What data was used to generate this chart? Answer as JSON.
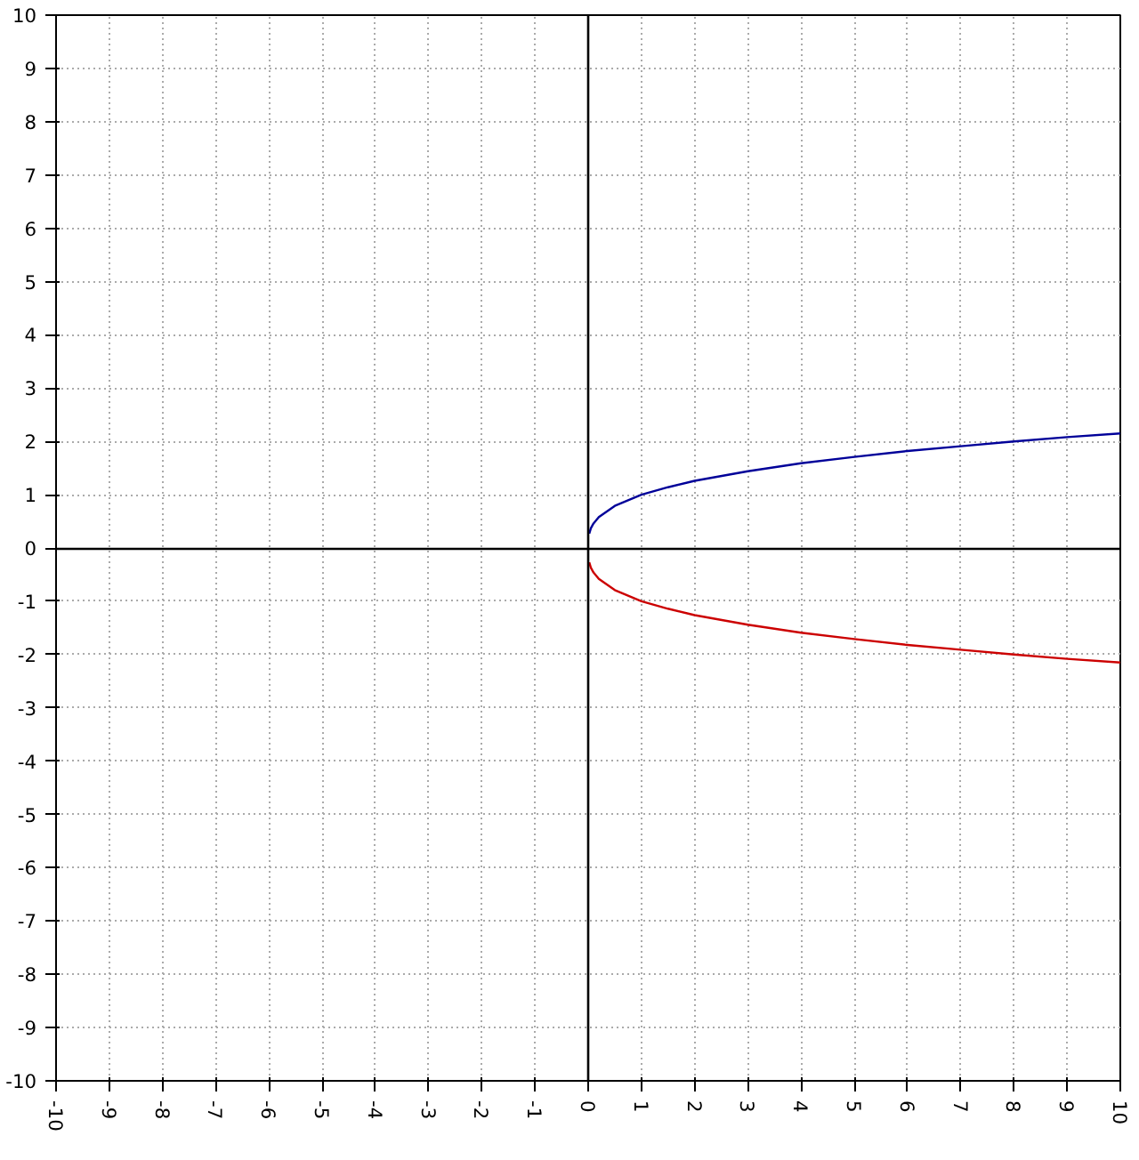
{
  "chart_data": {
    "type": "line",
    "x": [
      0.02,
      0.05,
      0.1,
      0.2,
      0.5,
      1,
      1.5,
      2,
      3,
      4,
      5,
      6,
      7,
      8,
      9,
      10
    ],
    "series": [
      {
        "color": "#000099",
        "values": [
          0.27,
          0.37,
          0.46,
          0.58,
          0.79,
          1,
          1.14,
          1.26,
          1.44,
          1.59,
          1.71,
          1.82,
          1.91,
          2,
          2.08,
          2.15
        ]
      },
      {
        "color": "#cc0000",
        "values": [
          -0.27,
          -0.37,
          -0.46,
          -0.58,
          -0.79,
          -1,
          -1.14,
          -1.26,
          -1.44,
          -1.59,
          -1.71,
          -1.82,
          -1.91,
          -2,
          -2.08,
          -2.15
        ]
      }
    ],
    "xlim": [
      -10,
      10
    ],
    "ylim": [
      -10,
      10
    ],
    "xticks": [
      -10,
      -9,
      -8,
      -7,
      -6,
      -5,
      -4,
      -3,
      -2,
      -1,
      0,
      1,
      2,
      3,
      4,
      5,
      6,
      7,
      8,
      9,
      10
    ],
    "yticks": [
      -10,
      -9,
      -8,
      -7,
      -6,
      -5,
      -4,
      -3,
      -2,
      -1,
      0,
      1,
      2,
      3,
      4,
      5,
      6,
      7,
      8,
      9,
      10
    ],
    "grid": true,
    "line_style": "solid"
  }
}
